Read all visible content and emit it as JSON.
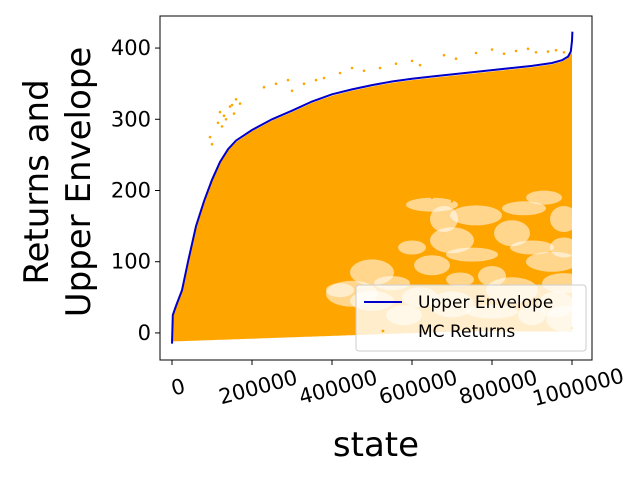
{
  "chart_data": {
    "type": "scatter",
    "xlabel": "state",
    "ylabel_lines": [
      "Returns and",
      "Upper Envelope"
    ],
    "xlim": [
      -30000,
      1050000
    ],
    "ylim": [
      -38,
      445
    ],
    "x_ticks": [
      {
        "value": 0,
        "label": "0"
      },
      {
        "value": 200000,
        "label": "200000"
      },
      {
        "value": 400000,
        "label": "400000"
      },
      {
        "value": 600000,
        "label": "600000"
      },
      {
        "value": 800000,
        "label": "800000"
      },
      {
        "value": 1000000,
        "label": "1000000"
      }
    ],
    "y_ticks": [
      {
        "value": 0,
        "label": "0"
      },
      {
        "value": 100,
        "label": "100"
      },
      {
        "value": 200,
        "label": "200"
      },
      {
        "value": 300,
        "label": "300"
      },
      {
        "value": 400,
        "label": "400"
      }
    ],
    "grid": false,
    "legend_position": "lower-right",
    "series": [
      {
        "name": "Upper Envelope",
        "kind": "line",
        "color": "#0000cc",
        "x": [
          0,
          2000,
          10000,
          25000,
          40000,
          60000,
          80000,
          100000,
          120000,
          140000,
          160000,
          200000,
          250000,
          300000,
          350000,
          400000,
          450000,
          500000,
          550000,
          600000,
          650000,
          700000,
          750000,
          800000,
          850000,
          900000,
          950000,
          975000,
          990000,
          997000,
          1000000,
          1001000
        ],
        "y": [
          -15,
          25,
          38,
          60,
          100,
          150,
          185,
          215,
          240,
          258,
          270,
          285,
          300,
          312,
          325,
          335,
          342,
          348,
          353,
          357,
          360,
          363,
          366,
          369,
          372,
          375,
          379,
          383,
          388,
          395,
          410,
          423
        ]
      },
      {
        "name": "MC Returns",
        "kind": "scatter",
        "color": "#ffa500",
        "points": [
          [
            150000,
            320
          ],
          [
            170000,
            322
          ],
          [
            160000,
            328
          ],
          [
            130000,
            305
          ],
          [
            125000,
            290
          ],
          [
            115000,
            295
          ],
          [
            100000,
            265
          ],
          [
            95000,
            275
          ],
          [
            120000,
            310
          ],
          [
            135000,
            300
          ],
          [
            145000,
            318
          ],
          [
            155000,
            308
          ],
          [
            230000,
            345
          ],
          [
            260000,
            350
          ],
          [
            290000,
            355
          ],
          [
            300000,
            340
          ],
          [
            330000,
            350
          ],
          [
            360000,
            355
          ],
          [
            380000,
            358
          ],
          [
            420000,
            365
          ],
          [
            450000,
            372
          ],
          [
            480000,
            368
          ],
          [
            520000,
            372
          ],
          [
            560000,
            378
          ],
          [
            600000,
            382
          ],
          [
            620000,
            376
          ],
          [
            680000,
            390
          ],
          [
            710000,
            385
          ],
          [
            760000,
            393
          ],
          [
            800000,
            398
          ],
          [
            830000,
            392
          ],
          [
            860000,
            396
          ],
          [
            890000,
            399
          ],
          [
            910000,
            394
          ],
          [
            940000,
            395
          ],
          [
            960000,
            397
          ],
          [
            980000,
            394
          ],
          [
            995000,
            392
          ],
          [
            580000,
            208
          ],
          [
            620000,
            195
          ],
          [
            650000,
            190
          ],
          [
            700000,
            185
          ],
          [
            750000,
            200
          ],
          [
            800000,
            205
          ],
          [
            850000,
            212
          ],
          [
            900000,
            215
          ],
          [
            950000,
            205
          ],
          [
            990000,
            208
          ],
          [
            560000,
            170
          ],
          [
            520000,
            160
          ],
          [
            480000,
            150
          ],
          [
            460000,
            135
          ],
          [
            440000,
            120
          ],
          [
            420000,
            110
          ],
          [
            400000,
            100
          ],
          [
            200000,
            5
          ],
          [
            300000,
            8
          ],
          [
            400000,
            10
          ],
          [
            500000,
            6
          ],
          [
            600000,
            3
          ],
          [
            700000,
            2
          ],
          [
            800000,
            4
          ],
          [
            900000,
            5
          ],
          [
            1000000,
            7
          ]
        ],
        "white_gaps": [
          [
            600000,
            120
          ],
          [
            650000,
            95
          ],
          [
            700000,
            130
          ],
          [
            750000,
            110
          ],
          [
            800000,
            80
          ],
          [
            850000,
            140
          ],
          [
            900000,
            120
          ],
          [
            950000,
            100
          ],
          [
            980000,
            160
          ],
          [
            550000,
            70
          ],
          [
            500000,
            45
          ],
          [
            450000,
            55
          ],
          [
            420000,
            60
          ],
          [
            620000,
            50
          ],
          [
            700000,
            40
          ],
          [
            800000,
            30
          ],
          [
            900000,
            25
          ],
          [
            960000,
            40
          ],
          [
            880000,
            175
          ],
          [
            760000,
            165
          ],
          [
            680000,
            160
          ],
          [
            930000,
            190
          ],
          [
            980000,
            70
          ],
          [
            850000,
            60
          ],
          [
            720000,
            75
          ],
          [
            580000,
            25
          ],
          [
            500000,
            85
          ],
          [
            650000,
            180
          ],
          [
            980000,
            120
          ],
          [
            980000,
            20
          ]
        ]
      }
    ]
  }
}
